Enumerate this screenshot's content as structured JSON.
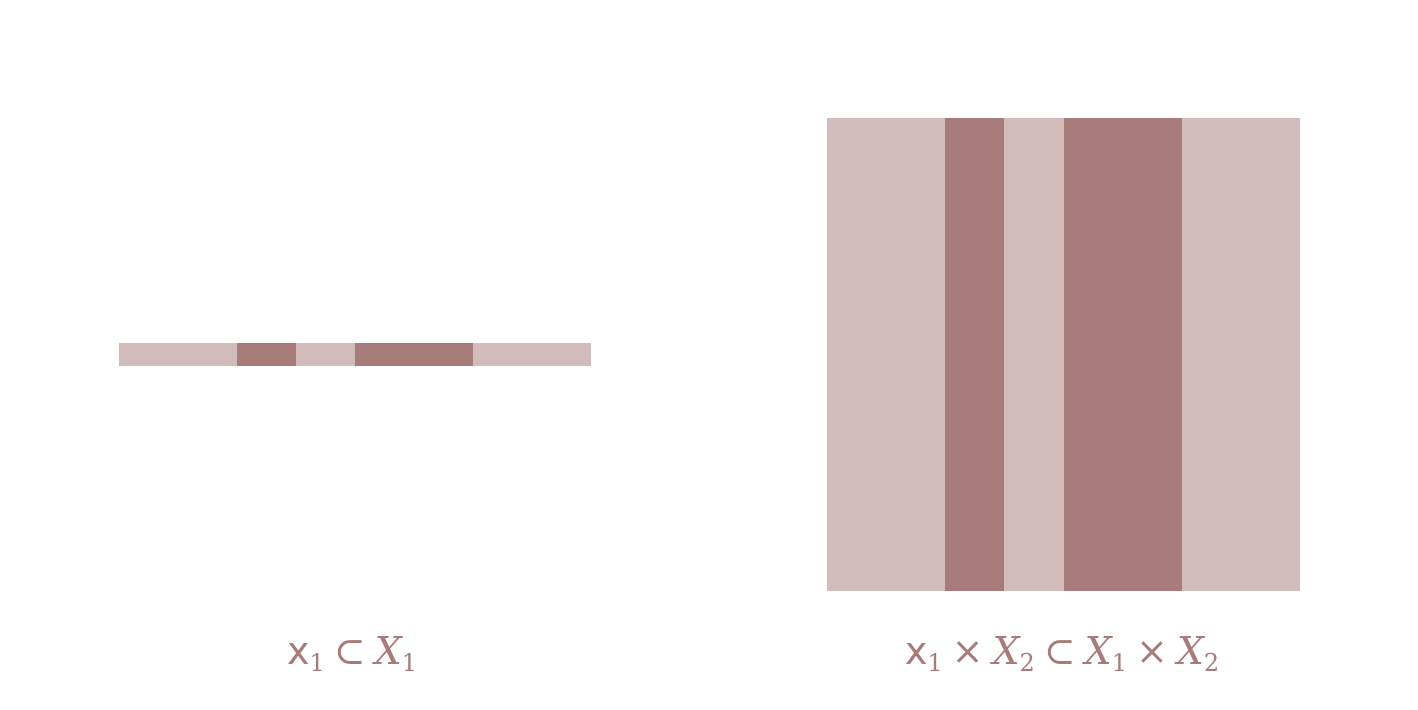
{
  "colors": {
    "light": "#d2bbbb",
    "dark": "#a77b79",
    "text": "#a77b79",
    "background": "#ffffff"
  },
  "segments": [
    {
      "fraction": 0.25,
      "tone": "light"
    },
    {
      "fraction": 0.125,
      "tone": "dark"
    },
    {
      "fraction": 0.125,
      "tone": "light"
    },
    {
      "fraction": 0.25,
      "tone": "dark"
    },
    {
      "fraction": 0.25,
      "tone": "light"
    }
  ],
  "captions": {
    "left": {
      "x_letter": "x",
      "x_index": "1",
      "subset": "⊂",
      "X_letter": "X",
      "X_index": "1"
    },
    "right": {
      "x_letter": "x",
      "x_index": "1",
      "times_a": "×",
      "X2_letter": "X",
      "X2_index": "2",
      "subset": "⊂",
      "X1_letter": "X",
      "X1_index": "1",
      "times_b": "×",
      "X3_letter": "X",
      "X3_index": "2"
    }
  }
}
